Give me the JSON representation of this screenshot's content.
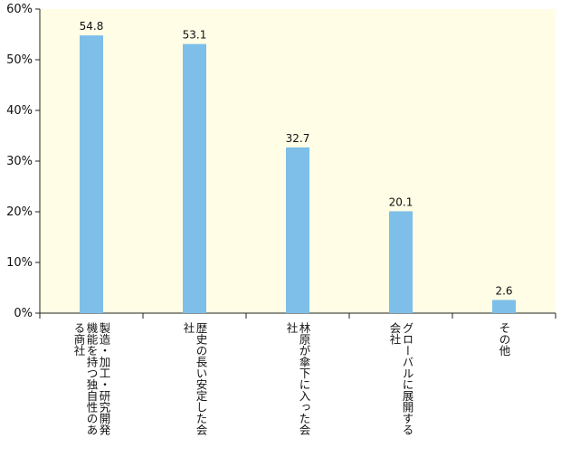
{
  "chart_data": {
    "type": "bar",
    "categories": [
      "製造・加工・研究開発機能を持つ独自性のある商社",
      "歴史の長い安定した会社",
      "林原が傘下に入った会社",
      "グローバルに展開する会社",
      "その他"
    ],
    "values": [
      54.8,
      53.1,
      32.7,
      20.1,
      2.6
    ],
    "data_labels": [
      "54.8",
      "53.1",
      "32.7",
      "20.1",
      "2.6"
    ],
    "y_ticks": [
      "0%",
      "10%",
      "20%",
      "30%",
      "40%",
      "50%",
      "60%"
    ],
    "ylim": [
      0,
      60
    ],
    "grid": false,
    "title": "",
    "xlabel": "",
    "ylabel": ""
  },
  "colors": {
    "plot_background": "#fffde6",
    "bar": "#7dbfe8",
    "axis": "#222222"
  }
}
